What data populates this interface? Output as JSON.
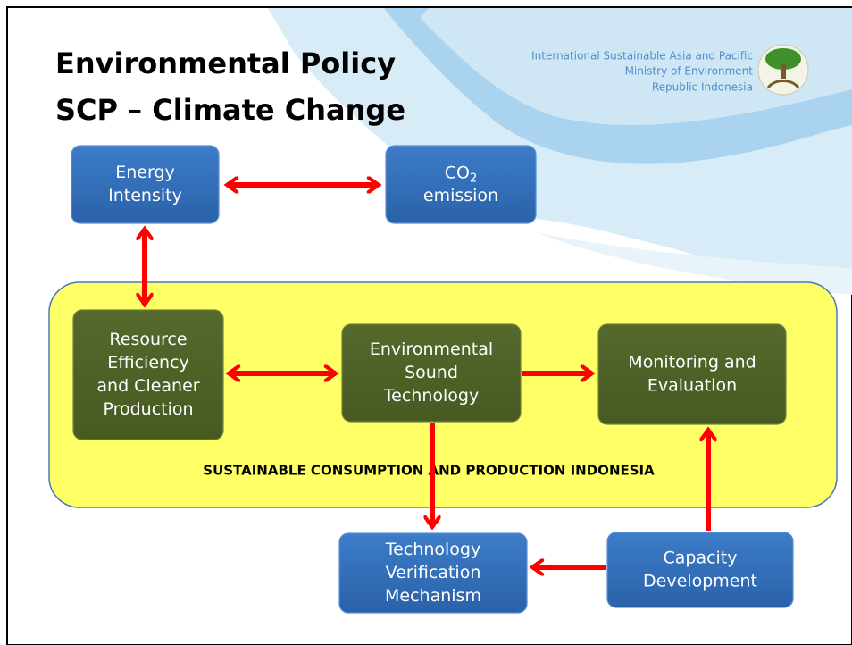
{
  "header": {
    "title": [
      "Environmental Policy",
      "SCP – Climate Change"
    ],
    "organization": [
      "International Sustainable Asia and Pacific",
      "Ministry of Environment",
      "Republic Indonesia"
    ]
  },
  "band": {
    "label": "SUSTAINABLE CONSUMPTION AND PRODUCTION INDONESIA"
  },
  "nodes": [
    {
      "lines": [
        "Energy",
        "Intensity"
      ]
    },
    {
      "lines": [
        {
          "main": "CO",
          "sub": "2"
        },
        "emission"
      ]
    },
    {
      "lines": [
        "Resource",
        "Efficiency",
        "and Cleaner",
        "Production"
      ]
    },
    {
      "lines": [
        "Environmental",
        "Sound",
        "Technology"
      ]
    },
    {
      "lines": [
        "Monitoring and",
        "Evaluation"
      ]
    },
    {
      "lines": [
        "Technology",
        "Verification",
        "Mechanism"
      ]
    },
    {
      "lines": [
        "Capacity",
        "Development"
      ]
    }
  ]
}
